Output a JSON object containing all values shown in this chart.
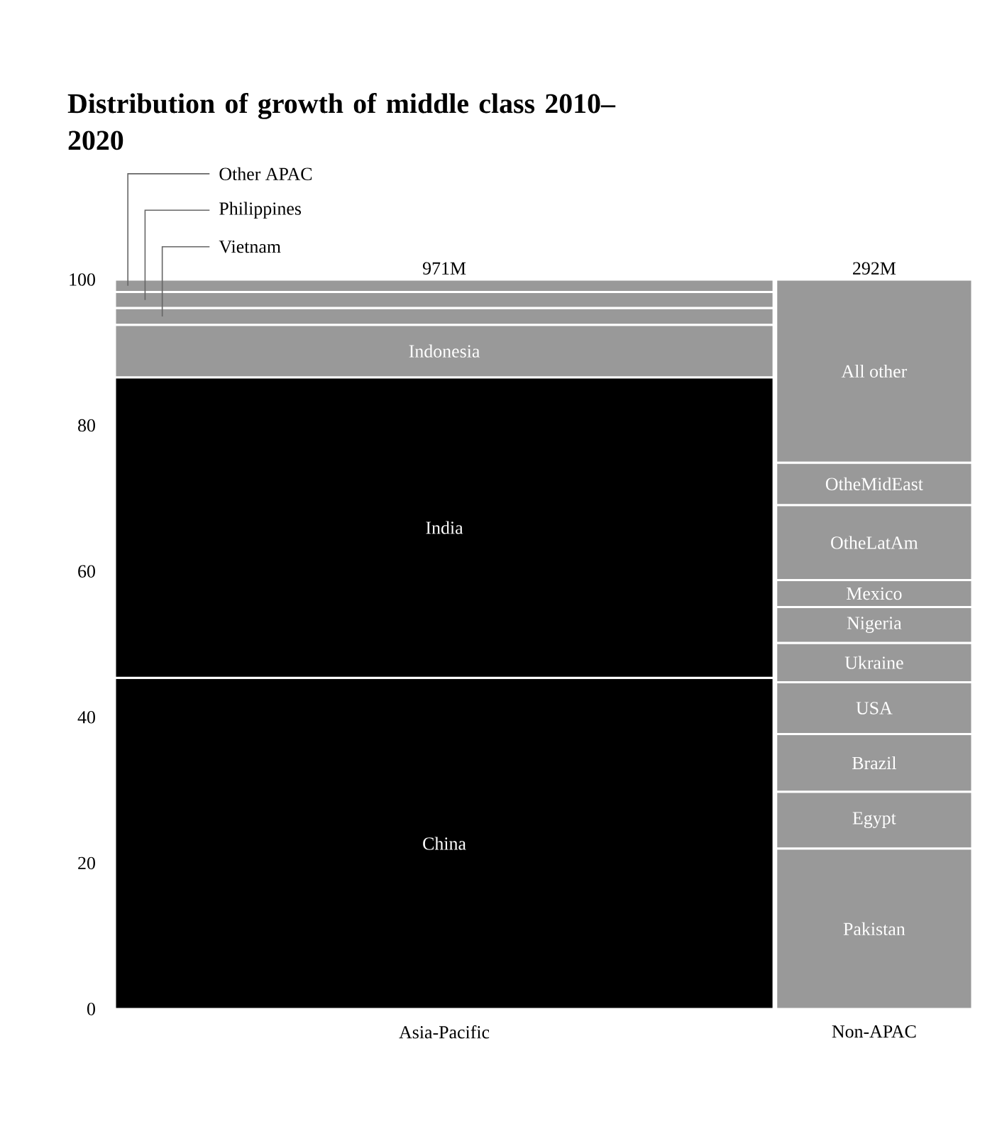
{
  "chart_data": {
    "type": "bar",
    "stacked": true,
    "title": "Distribution of growth of middle class 2010–2020",
    "categories": [
      "Asia-Pacific",
      "Non-APAC"
    ],
    "series": [
      {
        "name": "China",
        "color": "#000000",
        "values": [
          45.4,
          null
        ]
      },
      {
        "name": "India",
        "color": "#000000",
        "values": [
          41.2,
          null
        ]
      },
      {
        "name": "Indonesia",
        "color": "#999999",
        "values": [
          7.2,
          null
        ]
      },
      {
        "name": "Vietnam",
        "color": "#999999",
        "values": [
          2.3,
          null
        ]
      },
      {
        "name": "Philippines",
        "color": "#999999",
        "values": [
          2.2,
          null
        ]
      },
      {
        "name": "Other APAC",
        "color": "#999999",
        "values": [
          1.7,
          null
        ]
      },
      {
        "name": "Pakistan",
        "color": "#999999",
        "values": [
          null,
          22.0
        ]
      },
      {
        "name": "Egypt",
        "color": "#999999",
        "values": [
          null,
          7.8
        ]
      },
      {
        "name": "Brazil",
        "color": "#999999",
        "values": [
          null,
          7.9
        ]
      },
      {
        "name": "USA",
        "color": "#999999",
        "values": [
          null,
          7.1
        ]
      },
      {
        "name": "Ukraine",
        "color": "#999999",
        "values": [
          null,
          5.4
        ]
      },
      {
        "name": "Nigeria",
        "color": "#999999",
        "values": [
          null,
          4.9
        ]
      },
      {
        "name": "Mexico",
        "color": "#999999",
        "values": [
          null,
          3.7
        ]
      },
      {
        "name": "OtheLatAm",
        "color": "#999999",
        "values": [
          null,
          10.3
        ]
      },
      {
        "name": "OtheMidEast",
        "color": "#999999",
        "values": [
          null,
          5.8
        ]
      },
      {
        "name": "All other",
        "color": "#999999",
        "values": [
          null,
          25.1
        ]
      }
    ],
    "annotations": [
      {
        "text": "971M",
        "x": "Asia-Pacific",
        "y": 100
      },
      {
        "text": "292M",
        "x": "Non-APAC",
        "y": 100
      }
    ],
    "ylim": [
      0,
      100
    ],
    "yticks": [
      0,
      20,
      40,
      60,
      80,
      100
    ]
  }
}
